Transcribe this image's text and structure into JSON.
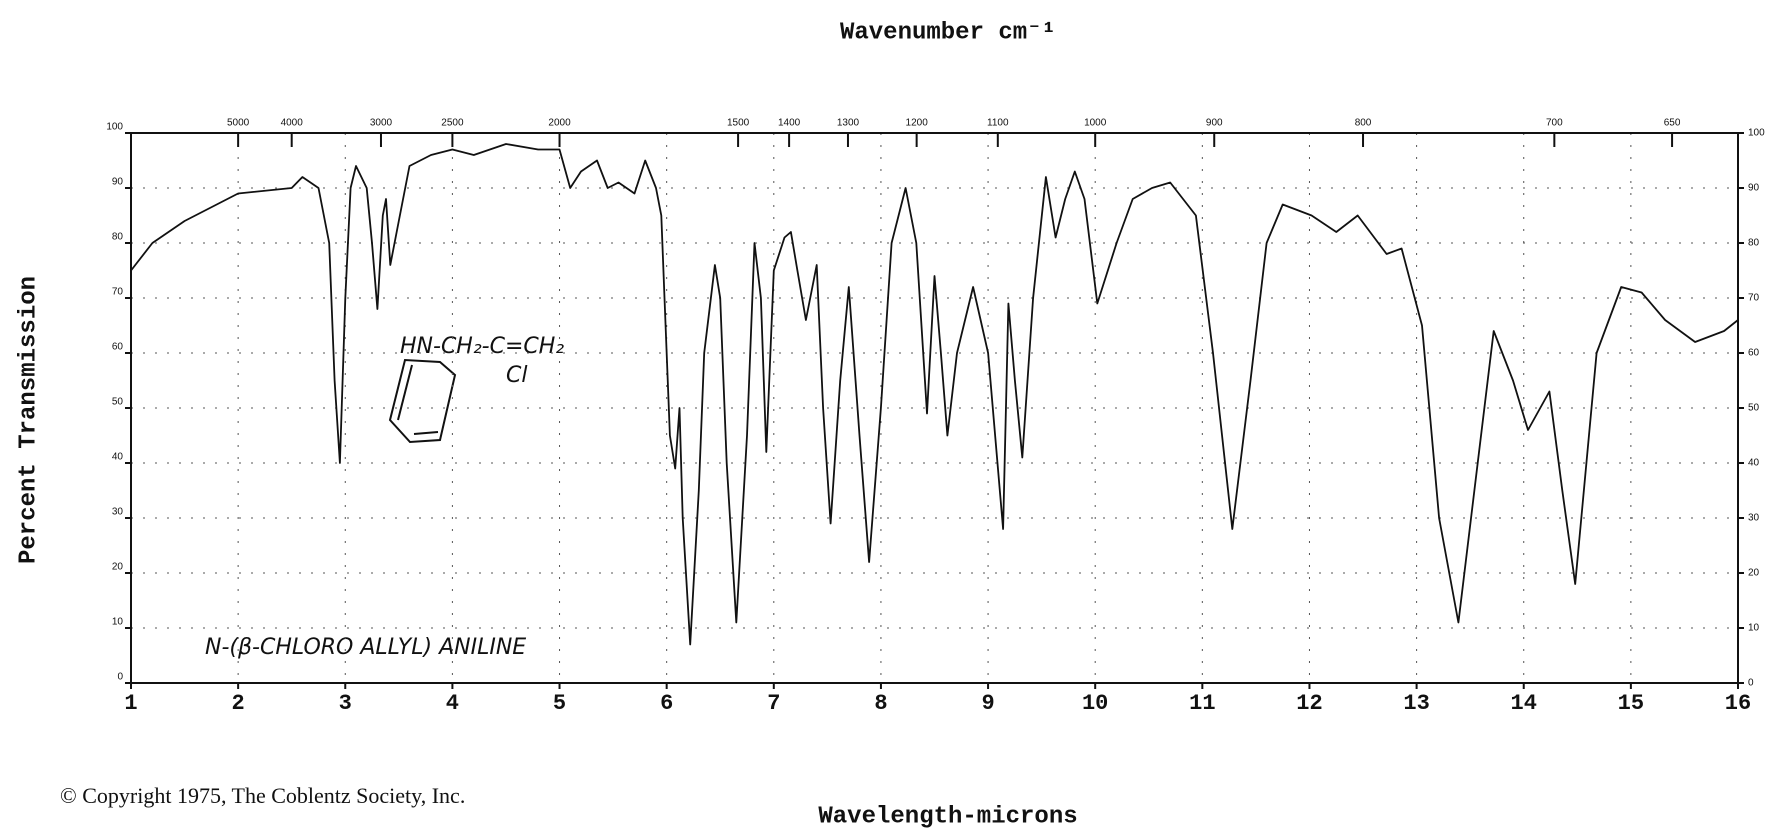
{
  "chart_data": {
    "type": "line",
    "title": "Wavenumber cm⁻¹",
    "x_label": "Wavelength-microns",
    "y_label": "Percent Transmission",
    "compound": "N-(β-CHLORO ALLYL) ANILINE",
    "formula": "HN-CH₂-C=CH₂",
    "formula_sub": "Cl",
    "copyright": "© Copyright 1975, The Coblentz Society, Inc.",
    "xlim": [
      1,
      16
    ],
    "xticks": [
      1,
      2,
      3,
      4,
      5,
      6,
      7,
      8,
      9,
      10,
      11,
      12,
      13,
      14,
      15,
      16
    ],
    "ylim": [
      0,
      100
    ],
    "yticks": [
      0,
      10,
      20,
      30,
      40,
      50,
      60,
      70,
      80,
      90,
      100
    ],
    "x2lim": [
      10000,
      625
    ],
    "x2ticks": [
      5000,
      4000,
      3000,
      2500,
      2000,
      1500,
      1400,
      1300,
      1200,
      1100,
      1000,
      900,
      800,
      700,
      650
    ],
    "grid": true,
    "color": "#111111",
    "x": [
      1.0,
      1.2,
      1.5,
      2.0,
      2.5,
      2.6,
      2.75,
      2.85,
      2.9,
      2.95,
      3.0,
      3.05,
      3.1,
      3.2,
      3.25,
      3.3,
      3.35,
      3.38,
      3.42,
      3.5,
      3.6,
      3.8,
      4.0,
      4.2,
      4.5,
      4.8,
      5.0,
      5.1,
      5.2,
      5.35,
      5.45,
      5.55,
      5.7,
      5.8,
      5.9,
      5.95,
      5.98,
      6.03,
      6.08,
      6.12,
      6.15,
      6.22,
      6.3,
      6.35,
      6.45,
      6.5,
      6.56,
      6.65,
      6.75,
      6.82,
      6.88,
      6.93,
      7.0,
      7.1,
      7.16,
      7.22,
      7.3,
      7.4,
      7.46,
      7.53,
      7.62,
      7.7,
      7.8,
      7.89,
      8.0,
      8.1,
      8.23,
      8.33,
      8.43,
      8.5,
      8.56,
      8.62,
      8.71,
      8.86,
      9.0,
      9.14,
      9.19,
      9.25,
      9.32,
      9.42,
      9.54,
      9.63,
      9.72,
      9.81,
      9.9,
      10.02,
      10.2,
      10.35,
      10.53,
      10.7,
      10.94,
      11.1,
      11.28,
      11.45,
      11.6,
      11.75,
      12.02,
      12.25,
      12.45,
      12.72,
      12.86,
      13.05,
      13.21,
      13.39,
      13.57,
      13.72,
      13.9,
      14.04,
      14.24,
      14.36,
      14.48,
      14.68,
      14.91,
      15.1,
      15.32,
      15.6,
      15.87,
      16.0
    ],
    "y": [
      75,
      80,
      84,
      89,
      90,
      92,
      90,
      80,
      55,
      40,
      70,
      90,
      94,
      90,
      80,
      68,
      85,
      88,
      76,
      84,
      94,
      96,
      97,
      96,
      98,
      97,
      97,
      90,
      93,
      95,
      90,
      91,
      89,
      95,
      90,
      85,
      70,
      45,
      39,
      50,
      30,
      7,
      35,
      60,
      76,
      70,
      40,
      11,
      45,
      80,
      70,
      42,
      75,
      81,
      82,
      75,
      66,
      76,
      50,
      29,
      55,
      72,
      45,
      22,
      50,
      80,
      90,
      80,
      49,
      74,
      60,
      45,
      60,
      72,
      60,
      28,
      69,
      55,
      41,
      70,
      92,
      81,
      88,
      93,
      88,
      69,
      80,
      88,
      90,
      91,
      85,
      60,
      28,
      55,
      80,
      87,
      85,
      82,
      85,
      78,
      79,
      65,
      30,
      11,
      40,
      64,
      55,
      46,
      53,
      35,
      18,
      60,
      72,
      71,
      66,
      62,
      64,
      66
    ]
  }
}
